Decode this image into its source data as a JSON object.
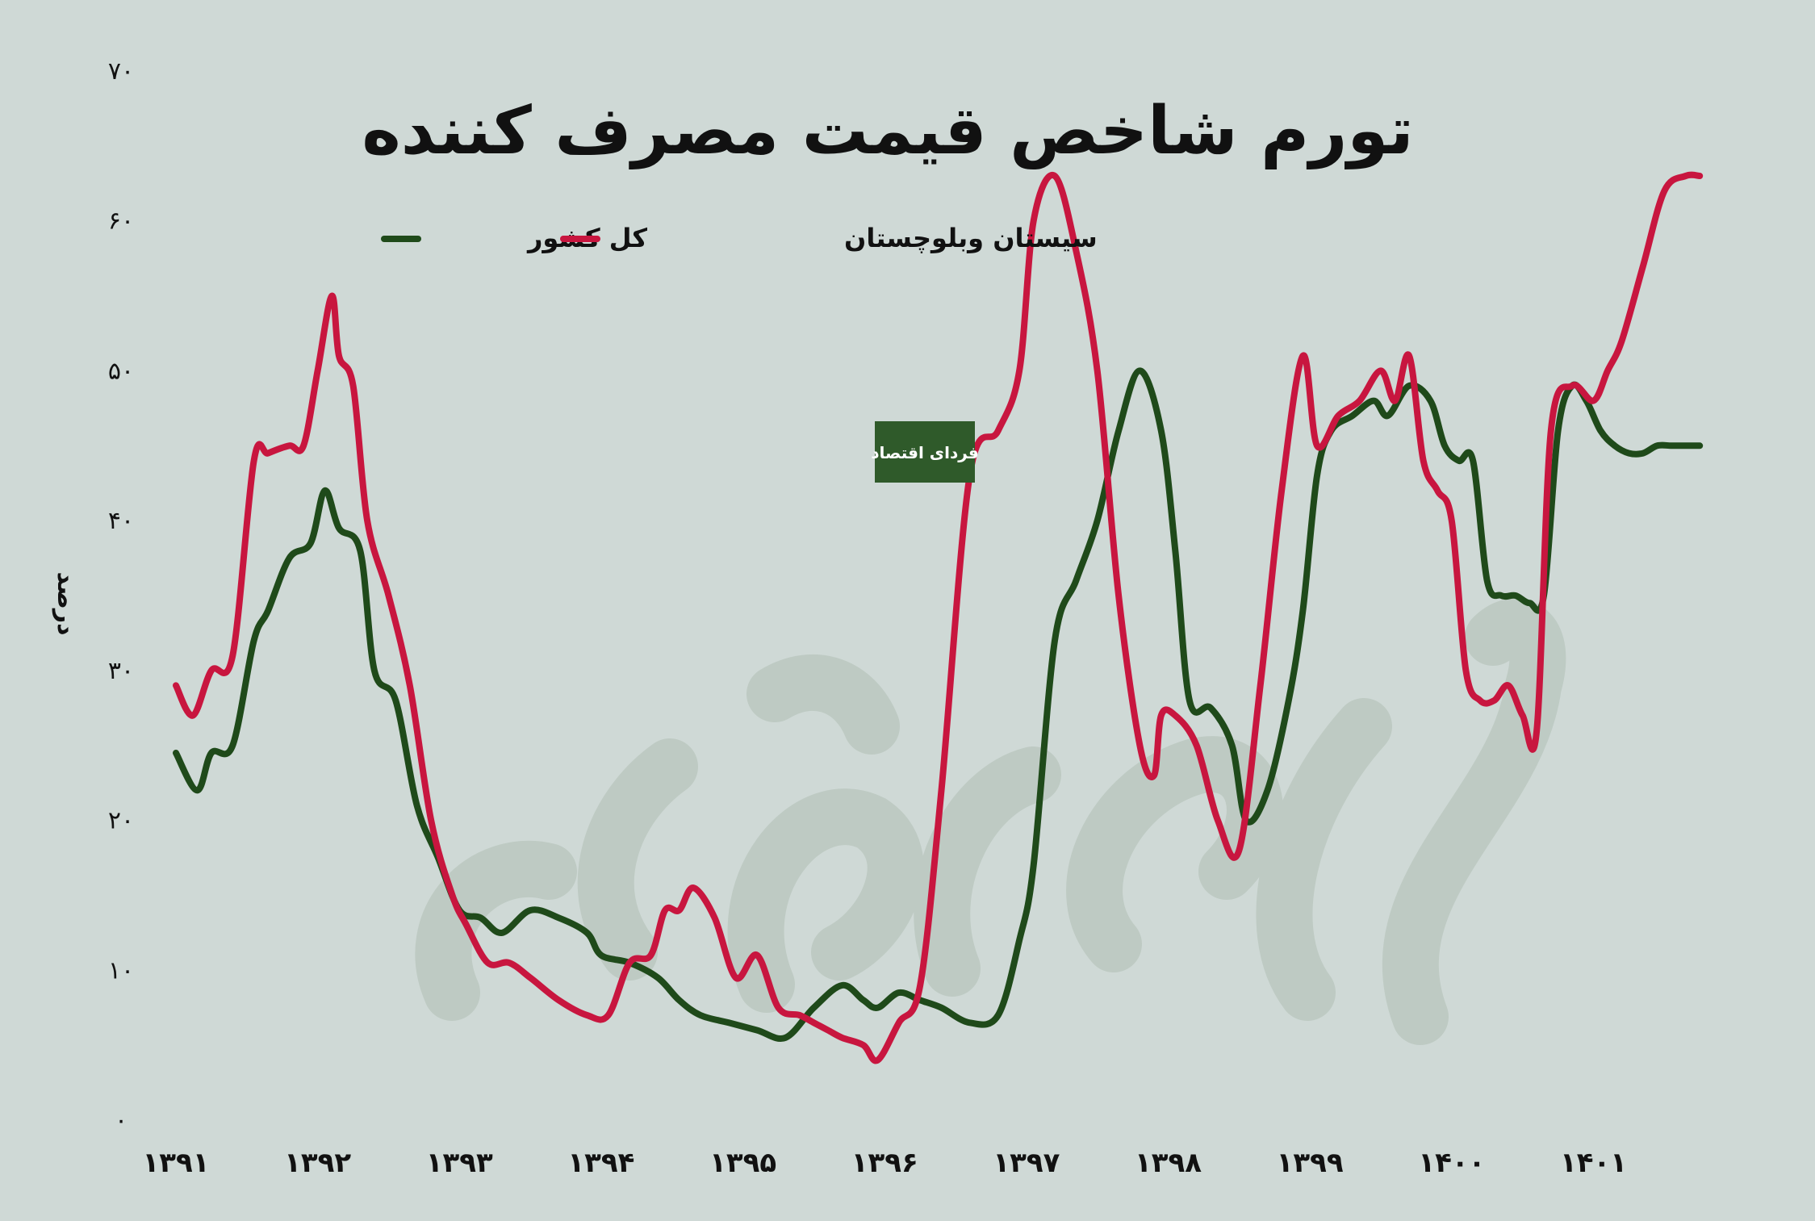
{
  "chart_data": {
    "type": "line",
    "title": "تورم شاخص قیمت مصرف کننده",
    "ylabel": "درصد",
    "ylim": [
      0,
      70
    ],
    "yticks": [
      "0",
      "10",
      "20",
      "30",
      "40",
      "50",
      "60",
      "70"
    ],
    "x_labels": [
      "1391",
      "1392",
      "1393",
      "1394",
      "1395",
      "1396",
      "1397",
      "1398",
      "1399",
      "1400",
      "1401"
    ],
    "xlim": [
      1391,
      1401.8
    ],
    "legend_position": "top-left",
    "logo_text": "فردای اقتصاد",
    "colors": {
      "national": "#1f4a1a",
      "sistan": "#c8163f",
      "logo_bg": "#2f5a2a"
    },
    "series": [
      {
        "name": "کل کشور",
        "key": "national",
        "x": [
          1391.0,
          1391.15,
          1391.25,
          1391.4,
          1391.55,
          1391.65,
          1391.8,
          1391.95,
          1392.05,
          1392.15,
          1392.3,
          1392.4,
          1392.55,
          1392.7,
          1392.85,
          1393.0,
          1393.15,
          1393.3,
          1393.5,
          1393.7,
          1393.9,
          1394.0,
          1394.2,
          1394.4,
          1394.55,
          1394.7,
          1394.9,
          1395.1,
          1395.3,
          1395.5,
          1395.7,
          1395.85,
          1395.95,
          1396.1,
          1396.25,
          1396.4,
          1396.6,
          1396.8,
          1396.95,
          1397.05,
          1397.2,
          1397.35,
          1397.5,
          1397.65,
          1397.8,
          1397.95,
          1398.05,
          1398.15,
          1398.3,
          1398.45,
          1398.55,
          1398.7,
          1398.85,
          1398.95,
          1399.05,
          1399.15,
          1399.3,
          1399.45,
          1399.55,
          1399.7,
          1399.85,
          1399.95,
          1400.05,
          1400.15,
          1400.25,
          1400.35,
          1400.45,
          1400.55,
          1400.65,
          1400.75,
          1400.85,
          1400.95,
          1401.05,
          1401.15,
          1401.25,
          1401.35,
          1401.45,
          1401.55,
          1401.65,
          1401.75
        ],
        "values": [
          24.5,
          22,
          24.5,
          25,
          32,
          34,
          37.5,
          38.5,
          42,
          39.5,
          38,
          30,
          28,
          21,
          17.5,
          14,
          13.5,
          12.5,
          14,
          13.5,
          12.5,
          11,
          10.5,
          9.5,
          8,
          7,
          6.5,
          6,
          5.5,
          7.5,
          9,
          8,
          7.5,
          8.5,
          8,
          7.5,
          6.5,
          7,
          12,
          17,
          32,
          36,
          40,
          46,
          50,
          46,
          38,
          28,
          27.5,
          25,
          20,
          22,
          28,
          34,
          43,
          46,
          47,
          48,
          47,
          49,
          48,
          45,
          44,
          44,
          36,
          35,
          35,
          34.5,
          35,
          46,
          49,
          48,
          46,
          45,
          44.5,
          44.5,
          45,
          45,
          45,
          45
        ]
      },
      {
        "name": "سیستان وبلوچستان",
        "key": "sistan",
        "x": [
          1391.0,
          1391.12,
          1391.25,
          1391.4,
          1391.55,
          1391.65,
          1391.8,
          1391.9,
          1392.0,
          1392.1,
          1392.15,
          1392.25,
          1392.35,
          1392.5,
          1392.65,
          1392.8,
          1392.95,
          1393.05,
          1393.2,
          1393.35,
          1393.5,
          1393.7,
          1393.9,
          1394.05,
          1394.2,
          1394.35,
          1394.45,
          1394.55,
          1394.65,
          1394.8,
          1394.95,
          1395.1,
          1395.25,
          1395.4,
          1395.5,
          1395.6,
          1395.7,
          1395.85,
          1395.95,
          1396.1,
          1396.25,
          1396.4,
          1396.6,
          1396.8,
          1396.95,
          1397.05,
          1397.2,
          1397.35,
          1397.5,
          1397.65,
          1397.8,
          1397.9,
          1397.95,
          1398.05,
          1398.2,
          1398.35,
          1398.5,
          1398.65,
          1398.8,
          1398.95,
          1399.05,
          1399.2,
          1399.35,
          1399.5,
          1399.6,
          1399.7,
          1399.8,
          1399.9,
          1400.0,
          1400.1,
          1400.2,
          1400.3,
          1400.4,
          1400.5,
          1400.6,
          1400.7,
          1400.85,
          1401.0,
          1401.1,
          1401.2,
          1401.35,
          1401.5,
          1401.65,
          1401.75
        ],
        "values": [
          29,
          27,
          30,
          31,
          44,
          44.5,
          45,
          45,
          50,
          55,
          51,
          49,
          40,
          35,
          29,
          20,
          15,
          13,
          10.5,
          10.5,
          9.5,
          8,
          7,
          7,
          10.5,
          11,
          14,
          14,
          15.5,
          13.5,
          9.5,
          11,
          7.5,
          7,
          6.5,
          6,
          5.5,
          5,
          4,
          6.5,
          9,
          22,
          43,
          46,
          50,
          60,
          63,
          58,
          50,
          35,
          25,
          23,
          27,
          27,
          25,
          20,
          18,
          29,
          42,
          51,
          45,
          47,
          48,
          50,
          48,
          51,
          44,
          42,
          40,
          30,
          28,
          28,
          29,
          27,
          26,
          46,
          49,
          48,
          50,
          52,
          57,
          62,
          63,
          63
        ]
      }
    ]
  }
}
